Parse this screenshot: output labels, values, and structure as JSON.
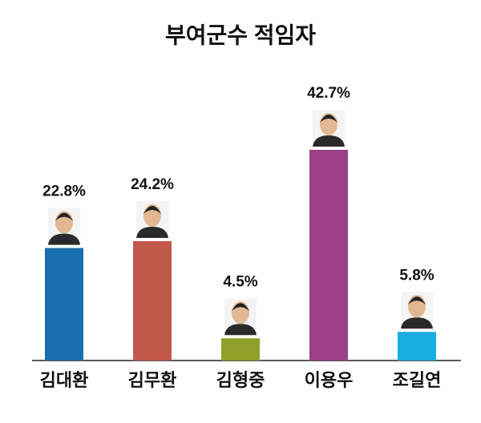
{
  "chart_data": {
    "type": "bar",
    "title": "부여군수 적임자",
    "categories": [
      "김대환",
      "김무환",
      "김형중",
      "이용우",
      "조길연"
    ],
    "values": [
      22.8,
      24.2,
      4.5,
      42.7,
      5.8
    ],
    "value_labels": [
      "22.8%",
      "24.2%",
      "4.5%",
      "42.7%",
      "5.8%"
    ],
    "colors": [
      "#1b6fae",
      "#c1594b",
      "#8fa12a",
      "#9b3f86",
      "#1aade0"
    ]
  }
}
